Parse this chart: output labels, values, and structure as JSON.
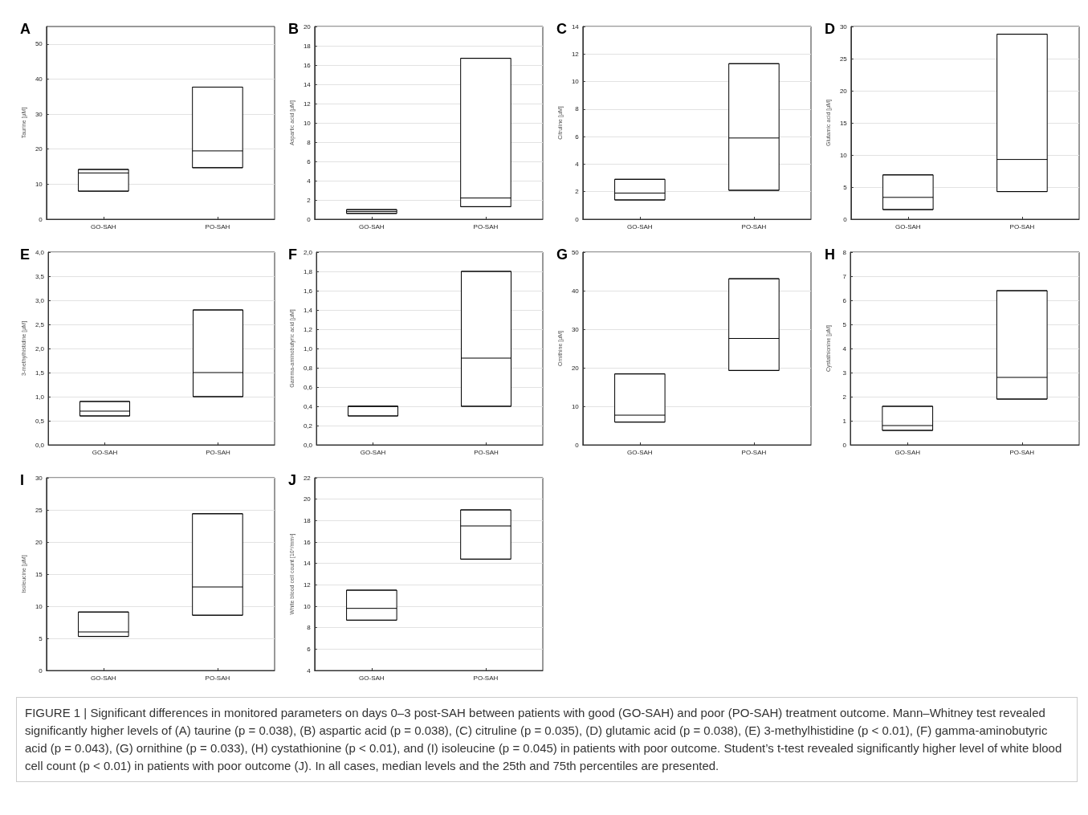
{
  "chart_data": [
    {
      "type": "box",
      "title": "A",
      "ylabel": "Taurine [µM]",
      "categories": [
        "GO-SAH",
        "PO-SAH"
      ],
      "ylim": [
        0,
        55
      ],
      "yticks": [
        0,
        10,
        20,
        30,
        40,
        50
      ],
      "grid": "y",
      "boxes": [
        {
          "low": 8,
          "q1": 8,
          "median": 13.2,
          "q3": 14.2,
          "high": 14.2
        },
        {
          "low": 14.7,
          "q1": 14.7,
          "median": 19.5,
          "q3": 37.7,
          "high": 37.7
        }
      ]
    },
    {
      "type": "box",
      "title": "B",
      "ylabel": "Aspartic acid [µM]",
      "categories": [
        "GO-SAH",
        "PO-SAH"
      ],
      "ylim": [
        0,
        20
      ],
      "yticks": [
        0,
        2,
        4,
        6,
        8,
        10,
        12,
        14,
        16,
        18,
        20
      ],
      "grid": "y",
      "boxes": [
        {
          "low": 0.6,
          "q1": 0.6,
          "median": 0.8,
          "q3": 1.0,
          "high": 1.0
        },
        {
          "low": 1.3,
          "q1": 1.3,
          "median": 2.2,
          "q3": 16.7,
          "high": 16.7
        }
      ]
    },
    {
      "type": "box",
      "title": "C",
      "ylabel": "Citruline [µM]",
      "categories": [
        "GO-SAH",
        "PO-SAH"
      ],
      "ylim": [
        0,
        14
      ],
      "yticks": [
        0,
        2,
        4,
        6,
        8,
        10,
        12,
        14
      ],
      "grid": "y",
      "boxes": [
        {
          "low": 1.4,
          "q1": 1.4,
          "median": 1.9,
          "q3": 2.9,
          "high": 2.9
        },
        {
          "low": 2.1,
          "q1": 2.1,
          "median": 5.9,
          "q3": 11.3,
          "high": 11.3
        }
      ]
    },
    {
      "type": "box",
      "title": "D",
      "ylabel": "Glutamic acid [µM]",
      "categories": [
        "GO-SAH",
        "PO-SAH"
      ],
      "ylim": [
        0,
        30
      ],
      "yticks": [
        0,
        5,
        10,
        15,
        20,
        25,
        30
      ],
      "grid": "y",
      "boxes": [
        {
          "low": 1.5,
          "q1": 1.5,
          "median": 3.4,
          "q3": 6.9,
          "high": 6.9
        },
        {
          "low": 4.3,
          "q1": 4.3,
          "median": 9.3,
          "q3": 28.8,
          "high": 28.8
        }
      ]
    },
    {
      "type": "box",
      "title": "E",
      "ylabel": "3-methylhistidine [µM]",
      "categories": [
        "GO-SAH",
        "PO-SAH"
      ],
      "ylim": [
        0,
        4
      ],
      "yticks": [
        {
          "value": 0,
          "label": "0,0"
        },
        {
          "value": 0.5,
          "label": "0,5"
        },
        {
          "value": 1,
          "label": "1,0"
        },
        {
          "value": 1.5,
          "label": "1,5"
        },
        {
          "value": 2,
          "label": "2,0"
        },
        {
          "value": 2.5,
          "label": "2,5"
        },
        {
          "value": 3,
          "label": "3,0"
        },
        {
          "value": 3.5,
          "label": "3,5"
        },
        {
          "value": 4,
          "label": "4,0"
        }
      ],
      "grid": "y",
      "boxes": [
        {
          "low": 0.6,
          "q1": 0.6,
          "median": 0.7,
          "q3": 0.9,
          "high": 0.9
        },
        {
          "low": 1.0,
          "q1": 1.0,
          "median": 1.5,
          "q3": 2.8,
          "high": 2.8
        }
      ]
    },
    {
      "type": "box",
      "title": "F",
      "ylabel": "Gamma-aminobutyric acid [µM]",
      "categories": [
        "GO-SAH",
        "PO-SAH"
      ],
      "ylim": [
        0,
        2
      ],
      "yticks": [
        {
          "value": 0,
          "label": "0,0"
        },
        {
          "value": 0.2,
          "label": "0,2"
        },
        {
          "value": 0.4,
          "label": "0,4"
        },
        {
          "value": 0.6,
          "label": "0,6"
        },
        {
          "value": 0.8,
          "label": "0,8"
        },
        {
          "value": 1,
          "label": "1,0"
        },
        {
          "value": 1.2,
          "label": "1,2"
        },
        {
          "value": 1.4,
          "label": "1,4"
        },
        {
          "value": 1.6,
          "label": "1,6"
        },
        {
          "value": 1.8,
          "label": "1,8"
        },
        {
          "value": 2,
          "label": "2,0"
        }
      ],
      "grid": "y",
      "boxes": [
        {
          "low": 0.3,
          "q1": 0.3,
          "median": 0.4,
          "q3": 0.4,
          "high": 0.4
        },
        {
          "low": 0.4,
          "q1": 0.4,
          "median": 0.9,
          "q3": 1.8,
          "high": 1.8
        }
      ]
    },
    {
      "type": "box",
      "title": "G",
      "ylabel": "Ornithine [µM]",
      "categories": [
        "GO-SAH",
        "PO-SAH"
      ],
      "ylim": [
        0,
        50
      ],
      "yticks": [
        0,
        10,
        20,
        30,
        40,
        50
      ],
      "grid": "y",
      "boxes": [
        {
          "low": 5.9,
          "q1": 5.9,
          "median": 7.7,
          "q3": 18.4,
          "high": 18.4
        },
        {
          "low": 19.3,
          "q1": 19.3,
          "median": 27.6,
          "q3": 43.1,
          "high": 43.1
        }
      ]
    },
    {
      "type": "box",
      "title": "H",
      "ylabel": "Cystathionine [µM]",
      "categories": [
        "GO-SAH",
        "PO-SAH"
      ],
      "ylim": [
        0,
        8
      ],
      "yticks": [
        0,
        1,
        2,
        3,
        4,
        5,
        6,
        7,
        8
      ],
      "grid": "y",
      "boxes": [
        {
          "low": 0.6,
          "q1": 0.6,
          "median": 0.8,
          "q3": 1.6,
          "high": 1.6
        },
        {
          "low": 1.9,
          "q1": 1.9,
          "median": 2.8,
          "q3": 6.4,
          "high": 6.4
        }
      ]
    },
    {
      "type": "box",
      "title": "I",
      "ylabel": "Isoleucine [µM]",
      "categories": [
        "GO-SAH",
        "PO-SAH"
      ],
      "ylim": [
        0,
        30
      ],
      "yticks": [
        0,
        5,
        10,
        15,
        20,
        25,
        30
      ],
      "grid": "y",
      "boxes": [
        {
          "low": 5.3,
          "q1": 5.3,
          "median": 6.0,
          "q3": 9.1,
          "high": 9.1
        },
        {
          "low": 8.6,
          "q1": 8.6,
          "median": 13.0,
          "q3": 24.4,
          "high": 24.4
        }
      ]
    },
    {
      "type": "box",
      "title": "J",
      "ylabel": "White blood cell count [10⁶/mm³]",
      "categories": [
        "GO-SAH",
        "PO-SAH"
      ],
      "ylim": [
        4,
        22
      ],
      "yticks": [
        4,
        6,
        8,
        10,
        12,
        14,
        16,
        18,
        20,
        22
      ],
      "grid": "y",
      "boxes": [
        {
          "low": 8.7,
          "q1": 8.7,
          "median": 9.8,
          "q3": 11.5,
          "high": 11.5
        },
        {
          "low": 14.4,
          "q1": 14.4,
          "median": 17.5,
          "q3": 19.0,
          "high": 19.0
        }
      ],
      "annotations": [
        "FIGURE 1 | Significant differences in monitored parameters on days 0–3 post-SAH between patients with good (GO-SAH) and poor (PO-SAH) treatment outcome. Mann–Whitney test revealed significantly higher levels of (A) taurine (p = 0.038), (B) aspartic acid (p = 0.038), (C) citruline (p = 0.035), (D) glutamic acid (p = 0.038), (E) 3-methylhistidine (p < 0.01), (F) gamma-aminobutyric acid (p = 0.043), (G) ornithine (p = 0.033), (H) cystathionine (p < 0.01), and (I) isoleucine (p = 0.045) in patients with poor outcome. Student’s t-test revealed significantly higher level of white blood cell count (p < 0.01) in patients with poor outcome (J). In all cases, median levels and the 25th and 75th percentiles are presented."
      ]
    }
  ]
}
